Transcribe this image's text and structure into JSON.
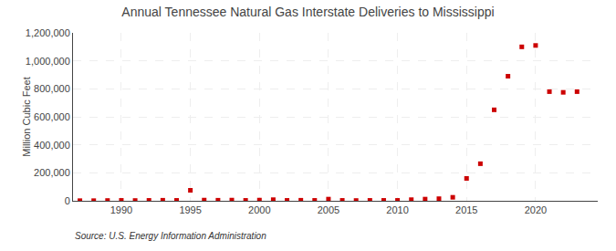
{
  "chart_data": {
    "type": "scatter",
    "title": "Annual Tennessee Natural Gas Interstate Deliveries to Mississippi",
    "ylabel": "Million Cubic Feet",
    "annotations": [
      "Source: U.S. Energy Information Administration"
    ],
    "x": [
      1987,
      1988,
      1989,
      1990,
      1991,
      1992,
      1993,
      1994,
      1995,
      1996,
      1997,
      1998,
      1999,
      2000,
      2001,
      2002,
      2003,
      2004,
      2005,
      2006,
      2007,
      2008,
      2009,
      2010,
      2011,
      2012,
      2013,
      2014,
      2015,
      2016,
      2017,
      2018,
      2019,
      2020,
      2021,
      2022,
      2023
    ],
    "values": [
      1000,
      1000,
      2000,
      3000,
      2000,
      3000,
      4000,
      3000,
      75000,
      5000,
      4000,
      5000,
      3000,
      5000,
      8000,
      3000,
      4000,
      3000,
      12000,
      3000,
      2000,
      3000,
      3000,
      3000,
      8000,
      12000,
      15000,
      25000,
      160000,
      265000,
      650000,
      890000,
      1100000,
      1110000,
      780000,
      775000,
      780000
    ],
    "color": "#CC0000",
    "marker": "square",
    "xlim": [
      1986.5,
      2024.5
    ],
    "xticks": [
      1990,
      1995,
      2000,
      2005,
      2010,
      2015,
      2020
    ],
    "ylim": [
      0,
      1200000
    ],
    "yticks": [
      0,
      {
        "value": 200000,
        "label": "200,000"
      },
      {
        "value": 400000,
        "label": "400,000"
      },
      {
        "value": 600000,
        "label": "600,000"
      },
      {
        "value": 800000,
        "label": "800,000"
      },
      {
        "value": 1000000,
        "label": "1,000,000"
      },
      {
        "value": 1200000,
        "label": "1,200,000"
      }
    ],
    "grid": true
  }
}
